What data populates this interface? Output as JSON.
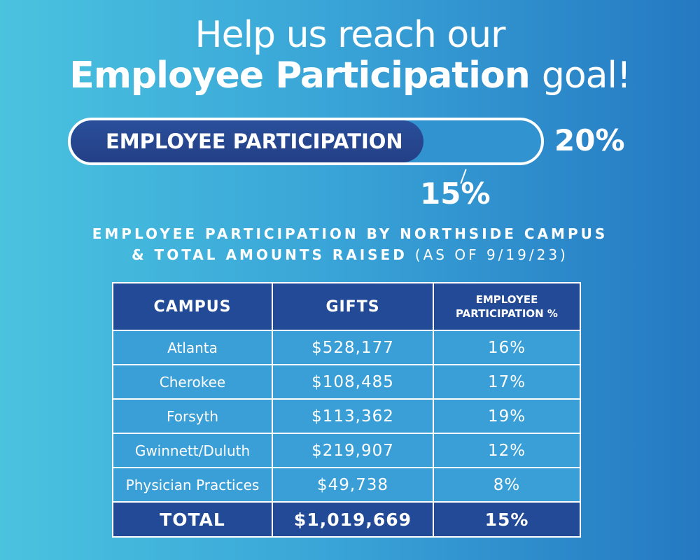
{
  "headline": {
    "line1": "Help us reach our",
    "line2_bold": "Employee Participation",
    "line2_rest": "goal!"
  },
  "progress": {
    "label": "EMPLOYEE PARTICIPATION",
    "current_percent": 15,
    "current_label": "15%",
    "goal_percent": 20,
    "goal_label": "20%"
  },
  "subheading": {
    "line1": "EMPLOYEE PARTICIPATION BY NORTHSIDE CAMPUS",
    "line2": "& TOTAL AMOUNTS RAISED",
    "as_of": "(AS OF 9/19/23)"
  },
  "table": {
    "headers": {
      "campus": "CAMPUS",
      "gifts": "GIFTS",
      "participation_line1": "EMPLOYEE",
      "participation_line2": "PARTICIPATION %"
    },
    "rows": [
      {
        "campus": "Atlanta",
        "gifts": "$528,177",
        "pct": "16%"
      },
      {
        "campus": "Cherokee",
        "gifts": "$108,485",
        "pct": "17%"
      },
      {
        "campus": "Forsyth",
        "gifts": "$113,362",
        "pct": "19%"
      },
      {
        "campus": "Gwinnett/Duluth",
        "gifts": "$219,907",
        "pct": "12%"
      },
      {
        "campus": "Physician Practices",
        "gifts": "$49,738",
        "pct": "8%"
      }
    ],
    "total": {
      "campus": "TOTAL",
      "gifts": "$1,019,669",
      "pct": "15%"
    }
  },
  "colors": {
    "bar_fill": "#233f86",
    "header_bg": "#234a96",
    "cell_bg": "#3a9fd6"
  }
}
